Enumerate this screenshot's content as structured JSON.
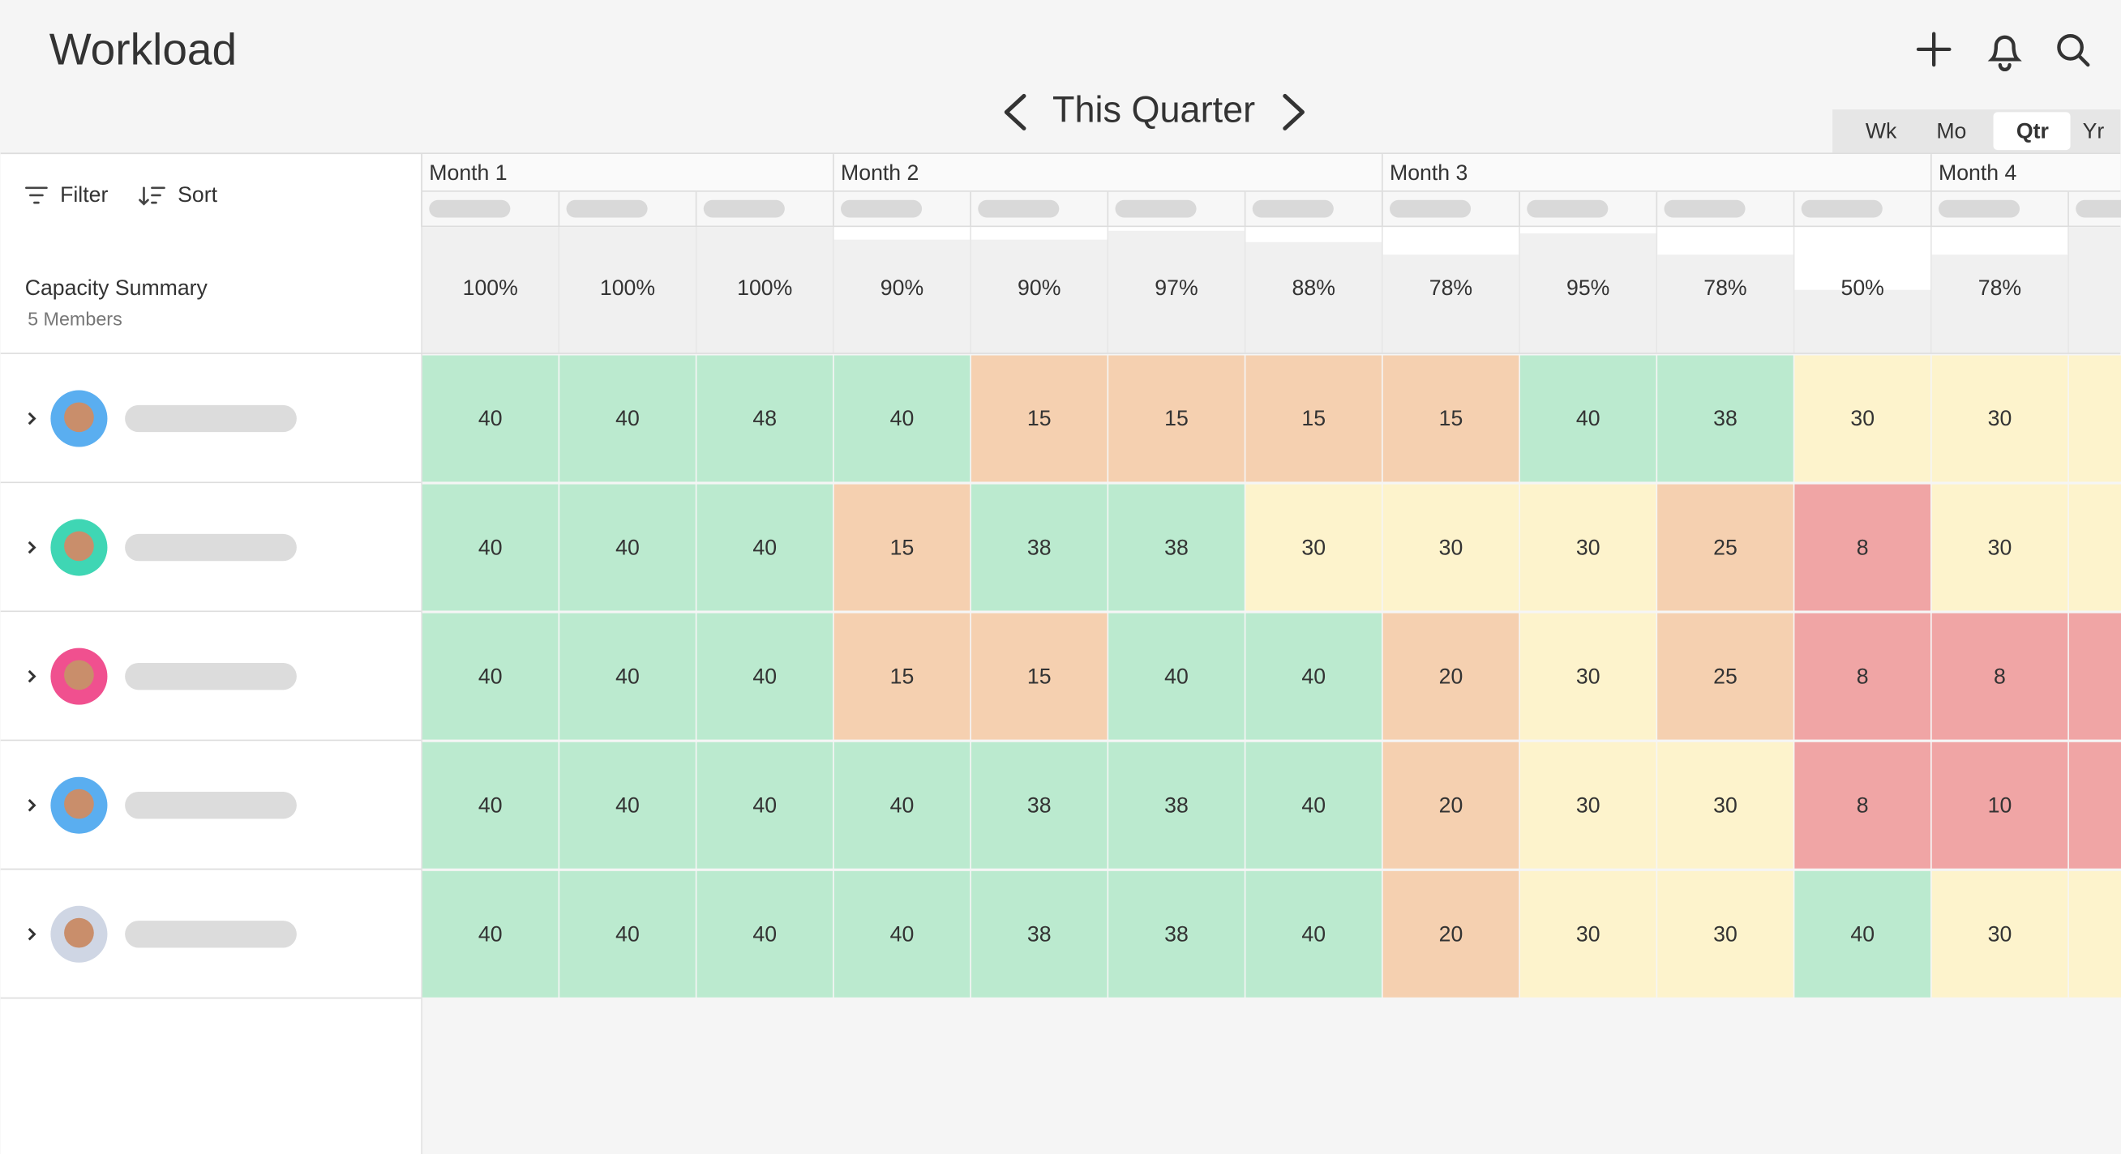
{
  "header": {
    "title": "Workload",
    "period": "This Quarter",
    "views": [
      "Wk",
      "Mo",
      "Qtr",
      "Yr"
    ]
  },
  "toolbar": {
    "filter": "Filter",
    "sort": "Sort"
  },
  "capacity": {
    "title": "Capacity Summary",
    "members": "5 Members",
    "months": [
      "Month 1",
      "Month 2",
      "Month 3",
      "Month 4"
    ],
    "values": [
      100,
      100,
      100,
      90,
      90,
      97,
      88,
      78,
      95,
      78,
      50,
      78
    ],
    "value_labels": [
      "100%",
      "100%",
      "100%",
      "90%",
      "90%",
      "97%",
      "88%",
      "78%",
      "95%",
      "78%",
      "50%",
      "78%"
    ]
  },
  "rows": [
    {
      "values": [
        40,
        40,
        48,
        40,
        15,
        15,
        15,
        15,
        40,
        38,
        30,
        30
      ],
      "colors": [
        "#bbeacf",
        "#bbeacf",
        "#bbeacf",
        "#bbeacf",
        "#f5d0b0",
        "#f5d0b0",
        "#f5d0b0",
        "#f5d0b0",
        "#bbeacf",
        "#bbeacf",
        "#fdf3cc",
        "#fdf3cc"
      ]
    },
    {
      "values": [
        40,
        40,
        40,
        15,
        38,
        38,
        30,
        30,
        30,
        25,
        8,
        30
      ],
      "colors": [
        "#bbeacf",
        "#bbeacf",
        "#bbeacf",
        "#f5d0b0",
        "#bbeacf",
        "#bbeacf",
        "#fdf3cc",
        "#fdf3cc",
        "#fdf3cc",
        "#f5d0b0",
        "#f0a5a5",
        "#fdf3cc"
      ]
    },
    {
      "values": [
        40,
        40,
        40,
        15,
        15,
        40,
        40,
        20,
        30,
        25,
        8,
        8
      ],
      "colors": [
        "#bbeacf",
        "#bbeacf",
        "#bbeacf",
        "#f5d0b0",
        "#f5d0b0",
        "#bbeacf",
        "#bbeacf",
        "#f5d0b0",
        "#fdf3cc",
        "#f5d0b0",
        "#f0a5a5",
        "#f0a5a5"
      ]
    },
    {
      "values": [
        40,
        40,
        40,
        40,
        38,
        38,
        40,
        20,
        30,
        30,
        8,
        10
      ],
      "colors": [
        "#bbeacf",
        "#bbeacf",
        "#bbeacf",
        "#bbeacf",
        "#bbeacf",
        "#bbeacf",
        "#bbeacf",
        "#f5d0b0",
        "#fdf3cc",
        "#fdf3cc",
        "#f0a5a5",
        "#f0a5a5"
      ]
    },
    {
      "values": [
        40,
        40,
        40,
        40,
        38,
        38,
        40,
        20,
        30,
        30,
        40,
        30
      ],
      "colors": [
        "#bbeacf",
        "#bbeacf",
        "#bbeacf",
        "#bbeacf",
        "#bbeacf",
        "#bbeacf",
        "#bbeacf",
        "#f5d0b0",
        "#fdf3cc",
        "#fdf3cc",
        "#bbeacf",
        "#fdf3cc"
      ]
    }
  ]
}
